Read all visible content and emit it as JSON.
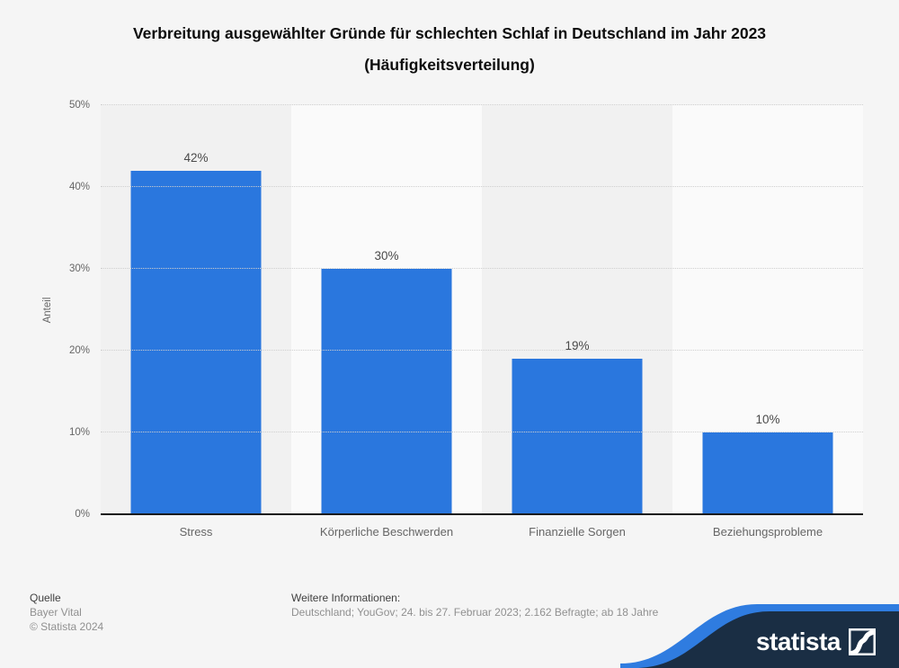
{
  "title": {
    "line1": "Verbreitung ausgewählter Gründe für schlechten Schlaf in Deutschland im Jahr 2023",
    "line2": "(Häufigkeitsverteilung)"
  },
  "chart_data": {
    "type": "bar",
    "categories": [
      "Stress",
      "Körperliche Beschwerden",
      "Finanzielle Sorgen",
      "Beziehungsprobleme"
    ],
    "values": [
      42,
      30,
      19,
      10
    ],
    "value_labels": [
      "42%",
      "30%",
      "19%",
      "10%"
    ],
    "title": "Verbreitung ausgewählter Gründe für schlechten Schlaf in Deutschland im Jahr 2023 (Häufigkeitsverteilung)",
    "xlabel": "",
    "ylabel": "Anteil",
    "ylim": [
      0,
      50
    ],
    "ytick_step": 10,
    "ytick_suffix": "%",
    "yticks": [
      "0%",
      "10%",
      "20%",
      "30%",
      "40%",
      "50%"
    ],
    "grid": "horizontal dotted",
    "legend": "none",
    "bar_color": "#2a77de"
  },
  "footer": {
    "source_heading": "Quelle",
    "source_line1": "Bayer Vital",
    "source_line2": "© Statista 2024",
    "info_heading": "Weitere Informationen:",
    "info_line": "Deutschland; YouGov; 24. bis 27. Februar 2023; 2.162 Befragte; ab 18 Jahre"
  },
  "branding": {
    "logo_text": "statista",
    "banner_color": "#1a2e44",
    "stripe_color": "#2f7ce0"
  }
}
